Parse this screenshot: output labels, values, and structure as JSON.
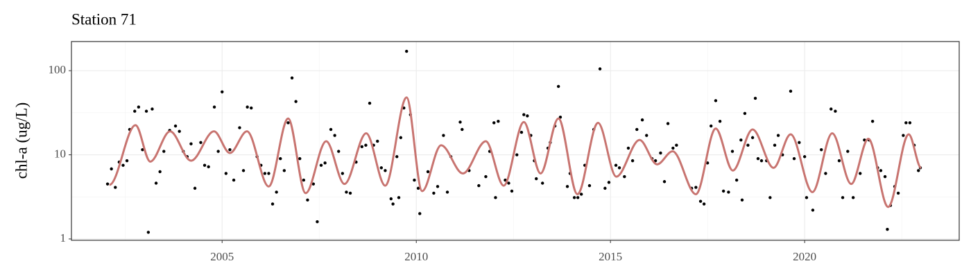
{
  "chart_data": {
    "type": "scatter",
    "title": "Station 71",
    "y_label": "chl-a (ug/L)",
    "log_y": true,
    "grid": true,
    "xlim": [
      2001.12,
      2023.98
    ],
    "ylim": [
      0.963,
      222
    ],
    "xticks": [
      2005,
      2010,
      2015,
      2020
    ],
    "yticks": [
      1,
      10,
      100
    ],
    "xminor": [
      2002.5,
      2007.5,
      2012.5,
      2017.5,
      2022.5
    ],
    "yminor": [
      3.16,
      31.6
    ],
    "points": {
      "color": "#000000",
      "x": [
        2002.05,
        2002.15,
        2002.25,
        2002.35,
        2002.45,
        2002.55,
        2002.62,
        2002.75,
        2002.85,
        2002.95,
        2003.05,
        2003.1,
        2003.2,
        2003.3,
        2003.4,
        2003.5,
        2003.65,
        2003.8,
        2003.9,
        2004.0,
        2004.1,
        2004.2,
        2004.3,
        2004.45,
        2004.55,
        2004.65,
        2004.8,
        2004.9,
        2005.0,
        2005.1,
        2005.2,
        2005.3,
        2005.45,
        2005.55,
        2005.65,
        2005.75,
        2005.9,
        2006.0,
        2006.1,
        2006.2,
        2006.3,
        2006.4,
        2006.5,
        2006.6,
        2006.7,
        2006.8,
        2006.9,
        2007.0,
        2007.1,
        2007.2,
        2007.35,
        2007.45,
        2007.55,
        2007.65,
        2007.8,
        2007.9,
        2008.0,
        2008.1,
        2008.2,
        2008.3,
        2008.45,
        2008.6,
        2008.7,
        2008.8,
        2008.9,
        2009.0,
        2009.1,
        2009.2,
        2009.35,
        2009.4,
        2009.5,
        2009.55,
        2009.6,
        2009.68,
        2009.75,
        2009.85,
        2009.95,
        2010.05,
        2010.09,
        2010.3,
        2010.45,
        2010.55,
        2010.7,
        2010.8,
        2010.89,
        2011.13,
        2011.18,
        2011.36,
        2011.61,
        2011.79,
        2011.89,
        2012.0,
        2012.04,
        2012.11,
        2012.29,
        2012.38,
        2012.46,
        2012.59,
        2012.71,
        2012.77,
        2012.86,
        2012.95,
        2013.04,
        2013.09,
        2013.25,
        2013.39,
        2013.45,
        2013.57,
        2013.66,
        2013.71,
        2013.89,
        2013.96,
        2014.07,
        2014.16,
        2014.25,
        2014.34,
        2014.46,
        2014.57,
        2014.73,
        2014.86,
        2014.96,
        2015.14,
        2015.23,
        2015.36,
        2015.46,
        2015.57,
        2015.68,
        2015.82,
        2015.93,
        2016.07,
        2016.16,
        2016.29,
        2016.39,
        2016.48,
        2016.61,
        2016.7,
        2017.09,
        2017.2,
        2017.32,
        2017.41,
        2017.5,
        2017.59,
        2017.71,
        2017.82,
        2017.91,
        2018.04,
        2018.14,
        2018.25,
        2018.36,
        2018.39,
        2018.46,
        2018.54,
        2018.66,
        2018.73,
        2018.8,
        2018.89,
        2019.02,
        2019.11,
        2019.23,
        2019.32,
        2019.43,
        2019.64,
        2019.73,
        2019.86,
        2020.0,
        2020.05,
        2020.21,
        2020.43,
        2020.54,
        2020.68,
        2020.79,
        2020.89,
        2020.98,
        2021.11,
        2021.25,
        2021.43,
        2021.54,
        2021.66,
        2021.75,
        2021.88,
        2021.96,
        2022.07,
        2022.13,
        2022.21,
        2022.32,
        2022.41,
        2022.54,
        2022.61,
        2022.71,
        2022.82,
        2022.93,
        2022.98
      ],
      "y": [
        4.5,
        6.8,
        4.1,
        8.2,
        7.5,
        8.5,
        20,
        33,
        37,
        11.5,
        33,
        1.2,
        35,
        4.6,
        6.3,
        11,
        19.5,
        22,
        19,
        11,
        9.5,
        13.5,
        4,
        14,
        7.5,
        7.2,
        37,
        11,
        56,
        6,
        11.5,
        5,
        21,
        6.5,
        37,
        36,
        9.5,
        7.5,
        6,
        6,
        2.6,
        3.6,
        9,
        6.5,
        24,
        82,
        43,
        9,
        5,
        2.9,
        4.5,
        1.6,
        7.5,
        8,
        20,
        17,
        11,
        6,
        3.6,
        3.5,
        8.2,
        12.5,
        13,
        41,
        13,
        14.5,
        7,
        6.5,
        3,
        2.6,
        9.5,
        3.1,
        16,
        36,
        170,
        30,
        5,
        4,
        2,
        6.3,
        3.5,
        4.2,
        17,
        3.6,
        9.5,
        24.5,
        20,
        6.5,
        4.3,
        5.5,
        11,
        24,
        3.1,
        25,
        5,
        4.6,
        3.7,
        10,
        18.5,
        30,
        29,
        17,
        8.5,
        5.2,
        4.6,
        12,
        14,
        22,
        65,
        28,
        4.2,
        6,
        3.1,
        3.1,
        3.4,
        7.5,
        4.3,
        20,
        105,
        4,
        4.7,
        7.5,
        7,
        5.5,
        12,
        8.5,
        20,
        26,
        17,
        9,
        8.5,
        10.5,
        4.8,
        23.5,
        12,
        13,
        4,
        4.1,
        2.8,
        2.6,
        8,
        22,
        44,
        25,
        3.7,
        3.6,
        11,
        5,
        15,
        2.9,
        31,
        13,
        16,
        47,
        9,
        8.5,
        8.5,
        3.1,
        13,
        17,
        10,
        57,
        9,
        14,
        9.5,
        3.1,
        2.2,
        11.5,
        6,
        35,
        33,
        8.5,
        3.1,
        11,
        3.1,
        6,
        15,
        15,
        25,
        7,
        6.5,
        5.5,
        1.3,
        2.5,
        4.2,
        3.5,
        17,
        24,
        24,
        13,
        6.5,
        7
      ]
    },
    "smooth": {
      "color": "#c87470",
      "x": [
        2002.1,
        2002.77,
        2003.15,
        2003.66,
        2004.2,
        2004.79,
        2005.2,
        2005.64,
        2006.2,
        2006.7,
        2007.15,
        2007.68,
        2008.15,
        2008.71,
        2009.2,
        2009.75,
        2010.15,
        2010.64,
        2011.2,
        2011.79,
        2012.25,
        2012.77,
        2013.2,
        2013.66,
        2014.15,
        2014.68,
        2015.15,
        2015.75,
        2016.2,
        2016.6,
        2017.2,
        2017.71,
        2018.15,
        2018.66,
        2019.2,
        2019.64,
        2020.2,
        2020.71,
        2021.2,
        2021.64,
        2022.15,
        2022.68,
        2023.0
      ],
      "y": [
        4.4,
        22.5,
        8.3,
        19,
        8.5,
        19,
        10.5,
        19,
        4.2,
        27,
        3.5,
        14.5,
        4.5,
        18,
        4.3,
        48,
        3.7,
        13,
        6,
        14.5,
        4.3,
        24.5,
        6,
        27,
        3.4,
        24,
        5.5,
        15,
        7.7,
        11,
        3.4,
        20.5,
        6.5,
        20,
        7,
        17.5,
        3.6,
        18,
        4.5,
        15.5,
        2.4,
        17.5,
        7
      ]
    }
  }
}
